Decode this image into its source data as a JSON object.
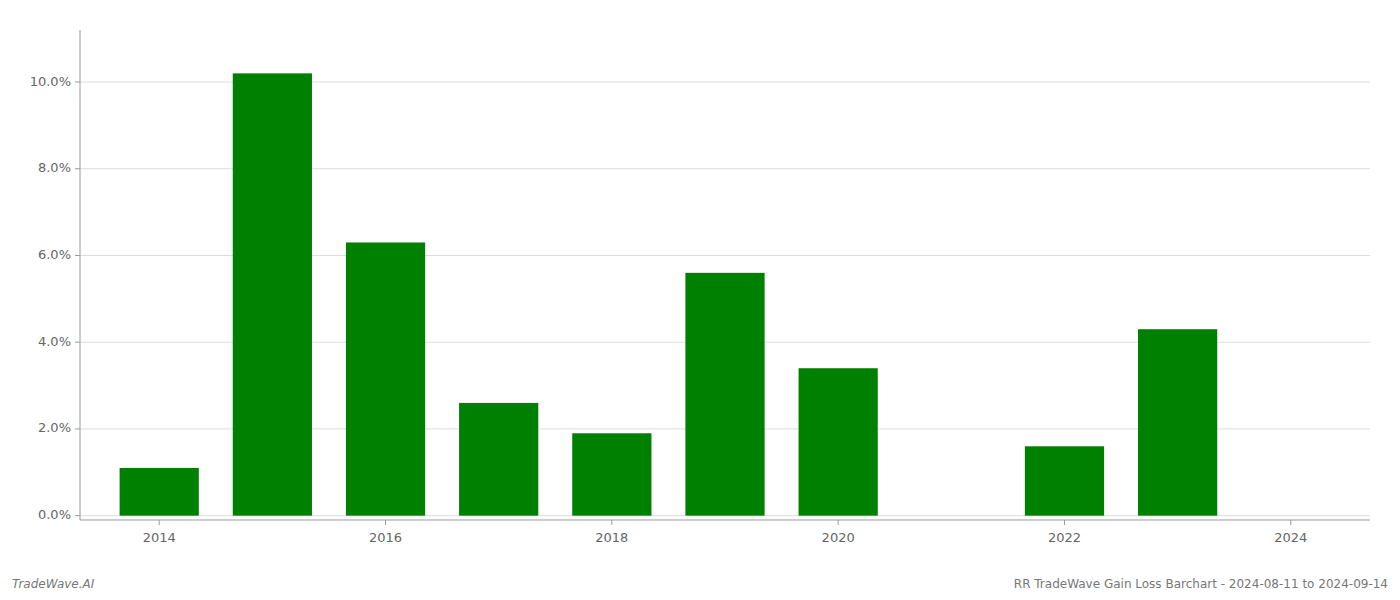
{
  "chart_data": {
    "type": "bar",
    "x": [
      2014,
      2015,
      2016,
      2017,
      2018,
      2019,
      2020,
      2021,
      2022,
      2023
    ],
    "values": [
      0.011,
      0.102,
      0.063,
      0.026,
      0.019,
      0.056,
      0.034,
      0.0,
      0.016,
      0.043
    ],
    "color": "#008000",
    "xlim": [
      2013.3,
      2024.7
    ],
    "xticks": [
      2014,
      2016,
      2018,
      2020,
      2022,
      2024
    ],
    "ylim": [
      -0.001,
      0.112
    ],
    "yticks": [
      {
        "value": 0.0,
        "label": "0.0%"
      },
      {
        "value": 0.02,
        "label": "2.0%"
      },
      {
        "value": 0.04,
        "label": "4.0%"
      },
      {
        "value": 0.06,
        "label": "6.0%"
      },
      {
        "value": 0.08,
        "label": "8.0%"
      },
      {
        "value": 0.1,
        "label": "10.0%"
      }
    ],
    "grid": true,
    "annotations": [
      "TradeWave.AI",
      "RR TradeWave Gain Loss Barchart - 2024-08-11 to 2024-09-14"
    ]
  }
}
